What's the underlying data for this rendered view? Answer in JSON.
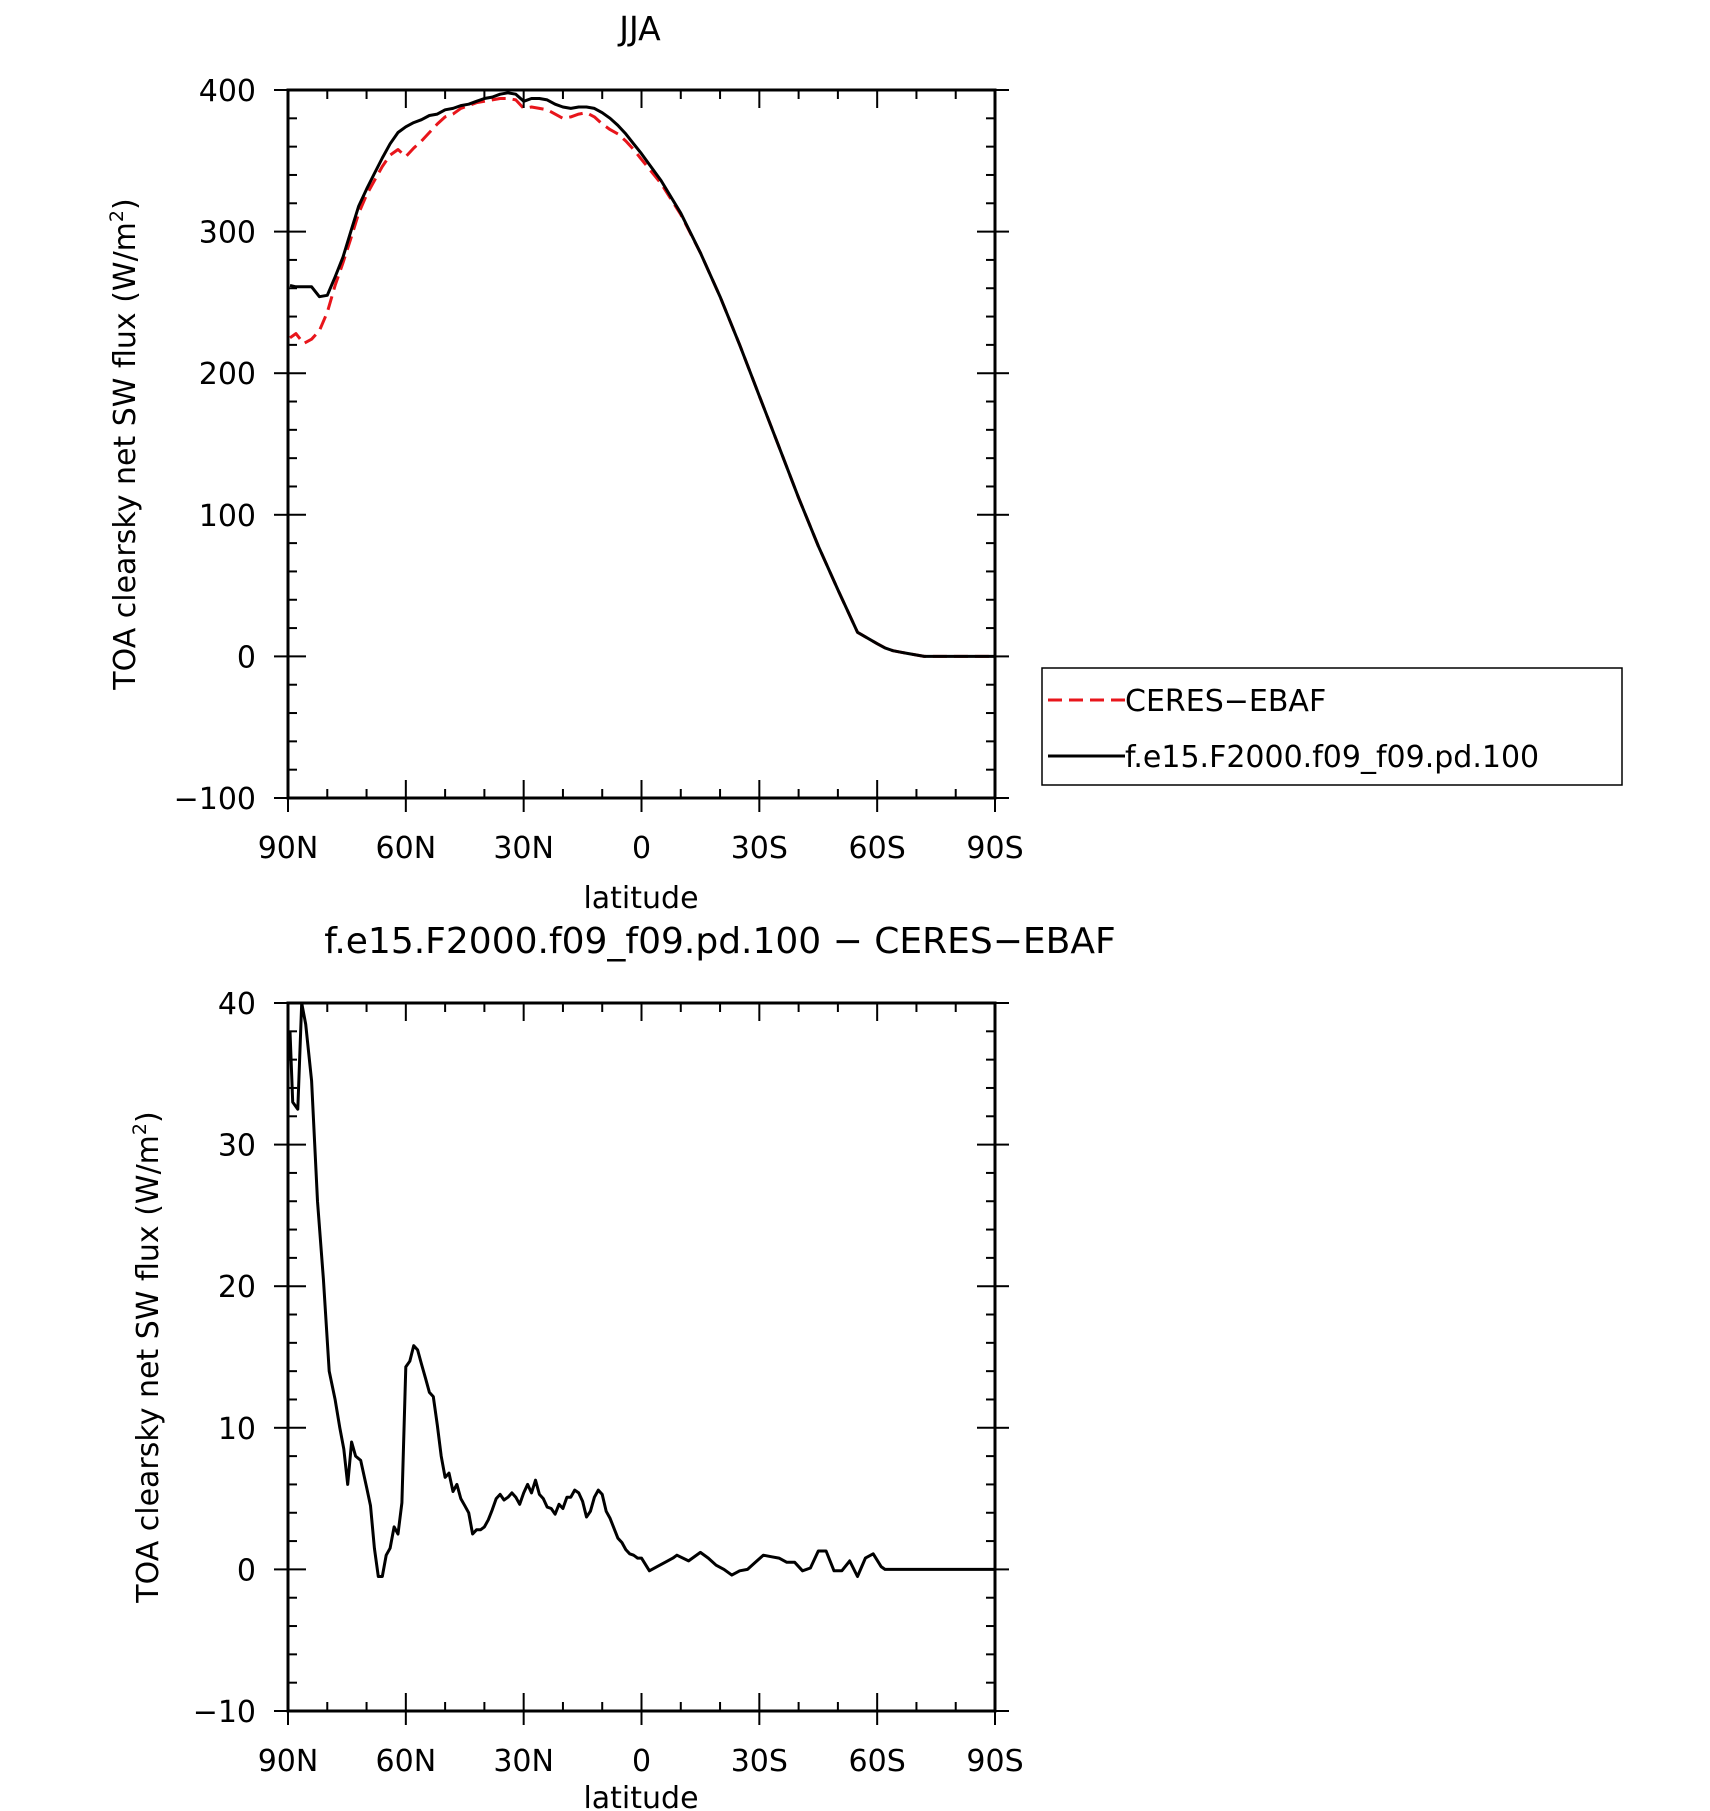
{
  "chart_data": [
    {
      "type": "line",
      "title": "JJA",
      "xlabel": "latitude",
      "ylabel": "TOA clearsky net SW flux (W/m²)",
      "ylabel_main": "TOA clearsky net SW flux (W/m",
      "ylabel_sup": "2",
      "ylabel_end": ")",
      "xlim": [
        90,
        -90
      ],
      "ylim": [
        -100,
        400
      ],
      "yticks": [
        -100,
        0,
        100,
        200,
        300,
        400
      ],
      "ytick_labels": [
        "−100",
        "0",
        "100",
        "200",
        "300",
        "400"
      ],
      "xticks": [
        90,
        60,
        30,
        0,
        -30,
        -60,
        -90
      ],
      "xtick_labels": [
        "90N",
        "60N",
        "30N",
        "0",
        "30S",
        "60S",
        "90S"
      ],
      "legend_position": "right",
      "series": [
        {
          "name": "CERES−EBAF",
          "color": "#e8151b",
          "style": "dashed",
          "x": [
            89.5,
            88,
            86,
            84,
            82,
            80,
            78,
            76,
            74,
            72,
            70,
            68,
            66,
            64,
            62,
            60,
            58,
            56,
            54,
            52,
            50,
            48,
            46,
            44,
            42,
            40,
            38,
            36,
            34,
            32,
            30,
            28,
            26,
            24,
            22,
            20,
            18,
            16,
            14,
            12,
            10,
            8,
            6,
            4,
            2,
            0,
            -5,
            -10,
            -15,
            -20,
            -25,
            -30,
            -35,
            -40,
            -45,
            -50,
            -55,
            -60,
            -62,
            -64,
            -66,
            -68,
            -70,
            -72,
            -74,
            -76,
            -78,
            -80,
            -85,
            -90
          ],
          "y": [
            225,
            228,
            221,
            224,
            230,
            243,
            262,
            278,
            295,
            313,
            326,
            336,
            346,
            354,
            358,
            353,
            359,
            364,
            370,
            376,
            381,
            383,
            387,
            389,
            391,
            392,
            393,
            394,
            394,
            393,
            387,
            388,
            387,
            386,
            383,
            380,
            381,
            383,
            384,
            381,
            376,
            372,
            369,
            364,
            358,
            351,
            334,
            312,
            285,
            254,
            220,
            184,
            148,
            112,
            78,
            47,
            17,
            9,
            6,
            4,
            3,
            2,
            1,
            0,
            0,
            0,
            0,
            0,
            0,
            0
          ]
        },
        {
          "name": "f.e15.F2000.f09_f09.pd.100",
          "color": "#000000",
          "style": "solid",
          "x": [
            89.5,
            88,
            86,
            84,
            82,
            80,
            78,
            76,
            74,
            72,
            70,
            68,
            66,
            64,
            62,
            60,
            58,
            56,
            54,
            52,
            50,
            48,
            46,
            44,
            42,
            40,
            38,
            36,
            34,
            32,
            30,
            28,
            26,
            24,
            22,
            20,
            18,
            16,
            14,
            12,
            10,
            8,
            6,
            4,
            2,
            0,
            -5,
            -10,
            -15,
            -20,
            -25,
            -30,
            -35,
            -40,
            -45,
            -50,
            -55,
            -60,
            -62,
            -64,
            -66,
            -68,
            -70,
            -72,
            -74,
            -76,
            -78,
            -80,
            -85,
            -90
          ],
          "y": [
            262,
            261,
            261,
            261,
            254,
            255,
            268,
            282,
            300,
            318,
            330,
            341,
            352,
            362,
            370,
            374,
            377,
            379,
            382,
            383,
            386,
            387,
            389,
            390,
            392,
            394,
            395,
            397,
            398,
            397,
            392,
            394,
            394,
            393,
            390,
            388,
            387,
            388,
            388,
            387,
            384,
            380,
            375,
            369,
            362,
            355,
            336,
            313,
            285,
            254,
            220,
            184,
            148,
            112,
            78,
            47,
            17,
            9,
            6,
            4,
            3,
            2,
            1,
            0,
            0,
            0,
            0,
            0,
            0,
            0
          ]
        }
      ]
    },
    {
      "type": "line",
      "title": "f.e15.F2000.f09_f09.pd.100 − CERES−EBAF",
      "xlabel": "latitude",
      "ylabel": "TOA clearsky net SW flux (W/m²)",
      "ylabel_main": "TOA clearsky net SW flux (W/m",
      "ylabel_sup": "2",
      "ylabel_end": ")",
      "xlim": [
        90,
        -90
      ],
      "ylim": [
        -10,
        40
      ],
      "yticks": [
        -10,
        0,
        10,
        20,
        30,
        40
      ],
      "ytick_labels": [
        "−10",
        "0",
        "10",
        "20",
        "30",
        "40"
      ],
      "xticks": [
        90,
        60,
        30,
        0,
        -30,
        -60,
        -90
      ],
      "xtick_labels": [
        "90N",
        "60N",
        "30N",
        "0",
        "30S",
        "60S",
        "90S"
      ],
      "series": [
        {
          "name": "",
          "color": "#000000",
          "style": "solid",
          "x": [
            89.5,
            88.8,
            87.5,
            86.5,
            85.5,
            84,
            82.5,
            81,
            79.5,
            78,
            76.8,
            75.8,
            74.8,
            73.8,
            72.8,
            71.5,
            70,
            69,
            68,
            67,
            66,
            65,
            64,
            63,
            62,
            61,
            60,
            59,
            58,
            57,
            56,
            55,
            54,
            53,
            52,
            51,
            50,
            49,
            48,
            47,
            46,
            45,
            44,
            43,
            42,
            41,
            40,
            39,
            38,
            37,
            36,
            35,
            34,
            33,
            32,
            31,
            30,
            29,
            28,
            27,
            26,
            25,
            24,
            23,
            22,
            21,
            20,
            19,
            18,
            17,
            16,
            15,
            14,
            13,
            12,
            11,
            10,
            9,
            8,
            7,
            6,
            5,
            4,
            3,
            2,
            1,
            0,
            -2,
            -4,
            -6,
            -8,
            -9,
            -12,
            -15,
            -17,
            -19,
            -21,
            -23,
            -25,
            -27,
            -29,
            -31,
            -33,
            -35,
            -37,
            -39,
            -41,
            -43,
            -45,
            -47,
            -49,
            -51,
            -53,
            -55,
            -57,
            -59,
            -61,
            -62,
            -64,
            -66,
            -68,
            -70,
            -72,
            -74,
            -76,
            -78,
            -80,
            -82,
            -84,
            -86,
            -88,
            -90
          ],
          "y": [
            38,
            33,
            32.5,
            40,
            38.5,
            34.5,
            26,
            20.5,
            14,
            12,
            10,
            8.5,
            6,
            9,
            8,
            7.7,
            5.8,
            4.5,
            1.5,
            -0.5,
            -0.5,
            1,
            1.5,
            3,
            2.5,
            4.7,
            14.3,
            14.7,
            15.8,
            15.5,
            14.5,
            13.5,
            12.5,
            12.2,
            10.2,
            8,
            6.5,
            6.8,
            5.5,
            6,
            5,
            4.5,
            4,
            2.5,
            2.8,
            2.8,
            3,
            3.5,
            4.2,
            5,
            5.3,
            4.9,
            5.1,
            5.4,
            5.1,
            4.6,
            5.4,
            6,
            5.4,
            6.3,
            5.3,
            5,
            4.4,
            4.3,
            3.9,
            4.6,
            4.3,
            5.1,
            5.1,
            5.6,
            5.4,
            4.8,
            3.7,
            4.1,
            5.1,
            5.6,
            5.3,
            4.1,
            3.6,
            2.9,
            2.2,
            1.9,
            1.4,
            1.1,
            1,
            0.8,
            0.8,
            -0.1,
            0.2,
            0.5,
            0.8,
            1,
            0.6,
            1.2,
            0.8,
            0.3,
            0,
            -0.4,
            -0.1,
            0,
            0.5,
            1,
            0.9,
            0.8,
            0.5,
            0.5,
            -0.1,
            0.1,
            1.3,
            1.3,
            -0.1,
            -0.1,
            0.6,
            -0.5,
            0.8,
            1.1,
            0.2,
            0,
            0,
            0,
            0,
            0,
            0,
            0,
            0,
            0,
            0,
            0,
            0,
            0,
            0,
            0
          ]
        }
      ]
    }
  ],
  "legend": {
    "items": [
      {
        "label": "CERES−EBAF",
        "color": "#e8151b",
        "style": "dashed"
      },
      {
        "label": "f.e15.F2000.f09_f09.pd.100",
        "color": "#000000",
        "style": "solid"
      }
    ]
  }
}
